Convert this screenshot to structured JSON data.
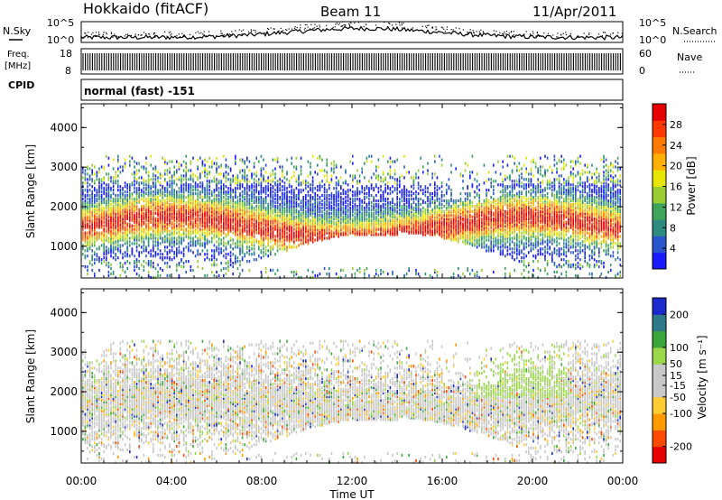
{
  "header": {
    "station": "Hokkaido (fitACF)",
    "beam": "Beam 11",
    "date": "11/Apr/2011"
  },
  "panels": {
    "nsky": {
      "label": "N.Sky",
      "left_ticks": [
        "10^5",
        "10^0"
      ],
      "right_ticks": [
        "10^5",
        "10^0"
      ],
      "right_label": "N.Search"
    },
    "freq": {
      "label_line1": "Freq.",
      "label_line2": "[MHz]",
      "left_ticks": [
        "18",
        "8"
      ],
      "right_ticks": [
        "60",
        "0"
      ],
      "right_label": "Nave"
    },
    "cpid": {
      "label": "CPID",
      "text": "normal (fast) -151"
    }
  },
  "colors": {
    "power": [
      "#1a1aff",
      "#2a55cc",
      "#2e8b80",
      "#3fa55a",
      "#9acd32",
      "#e6e600",
      "#ffb000",
      "#ff7a00",
      "#ff3a00",
      "#e60000"
    ],
    "velocity": [
      "#e60000",
      "#ff4a00",
      "#ff9a00",
      "#ffcc33",
      "#c8c8c8",
      "#c8c8c8",
      "#9ad84a",
      "#3aa63a",
      "#2e7a8a",
      "#1a2acc"
    ]
  },
  "chart_data": [
    {
      "type": "heatmap",
      "title": "Power",
      "xlabel": "Time UT",
      "ylabel": "Slant Range [km]",
      "x_ticks": [
        "00:00",
        "04:00",
        "08:00",
        "12:00",
        "16:00",
        "20:00",
        "00:00"
      ],
      "xlim_hours": [
        0,
        24
      ],
      "y_ticks": [
        1000,
        2000,
        3000,
        4000
      ],
      "ylim": [
        200,
        4600
      ],
      "colorbar": {
        "label": "Power [dB]",
        "ticks": [
          4,
          8,
          12,
          16,
          20,
          24,
          28
        ],
        "range": [
          0,
          32
        ]
      }
    },
    {
      "type": "heatmap",
      "title": "Velocity",
      "xlabel": "Time UT",
      "ylabel": "Slant Range [km]",
      "x_ticks": [
        "00:00",
        "04:00",
        "08:00",
        "12:00",
        "16:00",
        "20:00",
        "00:00"
      ],
      "xlim_hours": [
        0,
        24
      ],
      "y_ticks": [
        1000,
        2000,
        3000,
        4000
      ],
      "ylim": [
        200,
        4600
      ],
      "colorbar": {
        "label": "Velocity [m s⁻¹]",
        "ticks": [
          -200,
          -100,
          -50,
          -15,
          15,
          50,
          100,
          200
        ],
        "range": [
          -250,
          250
        ]
      }
    }
  ],
  "xaxis_title": "Time UT"
}
